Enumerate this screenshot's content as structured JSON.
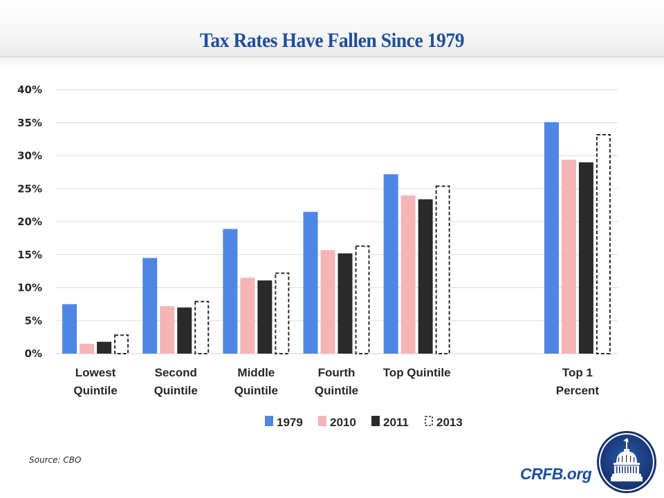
{
  "header": {
    "title": "Tax Rates Have Fallen Since 1979"
  },
  "footer": {
    "source": "Source: CBO",
    "brand": "CRFB.org",
    "logo_icon": "capitol-dome-icon"
  },
  "colors": {
    "1979": "#4f86e6",
    "2010": "#f5b5b5",
    "2011": "#2a2a2a",
    "2013": "#ffffff",
    "title": "#1f4e9c",
    "grid": "#d9d9d9"
  },
  "chart_data": {
    "type": "bar",
    "title": "Tax Rates Have Fallen Since 1979",
    "xlabel": "",
    "ylabel": "",
    "ylim": [
      0,
      40
    ],
    "yticks": [
      0,
      5,
      10,
      15,
      20,
      25,
      30,
      35,
      40
    ],
    "ytick_labels": [
      "0%",
      "5%",
      "10%",
      "15%",
      "20%",
      "25%",
      "30%",
      "35%",
      "40%"
    ],
    "grid": true,
    "legend_position": "bottom",
    "categories": [
      [
        "Lowest",
        "Quintile"
      ],
      [
        "Second",
        "Quintile"
      ],
      [
        "Middle",
        "Quintile"
      ],
      [
        "Fourth",
        "Quintile"
      ],
      [
        "Top Quintile"
      ],
      [],
      [
        "Top 1",
        "Percent"
      ]
    ],
    "series": [
      {
        "name": "1979",
        "style": "solid",
        "color": "#4f86e6",
        "values": [
          7.5,
          14.5,
          18.9,
          21.5,
          27.2,
          null,
          35.1
        ]
      },
      {
        "name": "2010",
        "style": "solid",
        "color": "#f5b5b5",
        "values": [
          1.5,
          7.2,
          11.5,
          15.7,
          24.0,
          null,
          29.4
        ]
      },
      {
        "name": "2011",
        "style": "solid",
        "color": "#2a2a2a",
        "values": [
          1.8,
          7.0,
          11.1,
          15.2,
          23.4,
          null,
          29.0
        ]
      },
      {
        "name": "2013",
        "style": "dashed-outline",
        "color": "#2a2a2a",
        "values": [
          2.9,
          8.0,
          12.3,
          16.4,
          25.5,
          null,
          33.3
        ]
      }
    ]
  }
}
